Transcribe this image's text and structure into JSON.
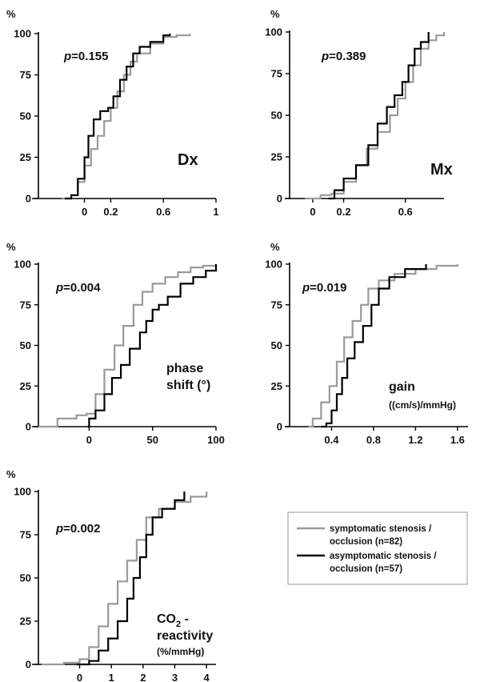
{
  "legend": {
    "symptomatic": {
      "line1": "symptomatic stenosis /",
      "line2": "occlusion (n=82)",
      "color": "#9a9a9a"
    },
    "asymptomatic": {
      "line1": "asymptomatic stenosis /",
      "line2": "occlusion (n=57)",
      "color": "#000000"
    }
  },
  "chart_data": [
    {
      "type": "line",
      "id": "dx",
      "panel_label": [
        "Dx"
      ],
      "p_label": "p",
      "p_value": "=0.155",
      "y_unit": "%",
      "xlim": [
        -0.35,
        1.0
      ],
      "ylim": [
        0,
        100
      ],
      "xticks": [
        0,
        0.2,
        0.6,
        1
      ],
      "xtick_labels": [
        "0",
        "0.2",
        "0.6",
        "1"
      ],
      "yticks": [
        0,
        25,
        50,
        75,
        100
      ],
      "ytick_labels": [
        "0",
        "25",
        "50",
        "75",
        "100"
      ],
      "series": [
        {
          "key": "symptomatic",
          "x": [
            -0.17,
            -0.1,
            -0.05,
            0.0,
            0.05,
            0.1,
            0.15,
            0.2,
            0.25,
            0.3,
            0.35,
            0.4,
            0.5,
            0.6,
            0.7,
            0.8
          ],
          "y": [
            0,
            2,
            10,
            20,
            30,
            38,
            47,
            55,
            65,
            75,
            83,
            88,
            94,
            98,
            99,
            100
          ]
        },
        {
          "key": "asymptomatic",
          "x": [
            -0.15,
            -0.1,
            -0.05,
            0.0,
            0.03,
            0.07,
            0.12,
            0.18,
            0.22,
            0.27,
            0.32,
            0.37,
            0.42,
            0.5,
            0.6,
            0.65
          ],
          "y": [
            0,
            2,
            12,
            25,
            38,
            48,
            53,
            55,
            62,
            72,
            80,
            88,
            92,
            95,
            99,
            100
          ]
        }
      ]
    },
    {
      "type": "line",
      "id": "mx",
      "panel_label": [
        "Mx"
      ],
      "p_label": "p",
      "p_value": "=0.389",
      "y_unit": "%",
      "xlim": [
        -0.15,
        0.85
      ],
      "ylim": [
        0,
        100
      ],
      "xticks": [
        0,
        0.2,
        0.6
      ],
      "xtick_labels": [
        "0",
        "0.2",
        "0.6"
      ],
      "yticks": [
        0,
        25,
        50,
        75,
        100
      ],
      "ytick_labels": [
        "0",
        "25",
        "50",
        "75",
        "100"
      ],
      "series": [
        {
          "key": "symptomatic",
          "x": [
            -0.05,
            0.05,
            0.12,
            0.2,
            0.28,
            0.35,
            0.42,
            0.5,
            0.55,
            0.6,
            0.65,
            0.7,
            0.75,
            0.8,
            0.85
          ],
          "y": [
            0,
            2,
            3,
            10,
            20,
            30,
            40,
            50,
            60,
            70,
            80,
            90,
            95,
            98,
            100
          ]
        },
        {
          "key": "asymptomatic",
          "x": [
            0.1,
            0.14,
            0.2,
            0.28,
            0.36,
            0.42,
            0.48,
            0.53,
            0.58,
            0.62,
            0.66,
            0.7,
            0.75
          ],
          "y": [
            0,
            5,
            12,
            20,
            32,
            45,
            55,
            62,
            70,
            80,
            90,
            94,
            100
          ]
        }
      ]
    },
    {
      "type": "line",
      "id": "phase",
      "panel_label": [
        "phase",
        "shift (°)"
      ],
      "p_label": "p",
      "p_value": "=0.004",
      "y_unit": "%",
      "xlim": [
        -40,
        100
      ],
      "ylim": [
        0,
        100
      ],
      "xticks": [
        0,
        50,
        100
      ],
      "xtick_labels": [
        "0",
        "50",
        "100"
      ],
      "yticks": [
        0,
        25,
        50,
        75,
        100
      ],
      "ytick_labels": [
        "0",
        "25",
        "50",
        "75",
        "100"
      ],
      "series": [
        {
          "key": "symptomatic",
          "x": [
            -40,
            -25,
            -10,
            -2,
            5,
            12,
            20,
            27,
            35,
            42,
            50,
            60,
            70,
            80,
            90,
            100
          ],
          "y": [
            0,
            5,
            7,
            8,
            20,
            35,
            50,
            62,
            75,
            83,
            88,
            92,
            95,
            98,
            99,
            100
          ]
        },
        {
          "key": "asymptomatic",
          "x": [
            -1,
            0,
            5,
            12,
            18,
            25,
            32,
            40,
            45,
            50,
            55,
            62,
            72,
            82,
            92,
            100
          ],
          "y": [
            0,
            5,
            10,
            20,
            30,
            38,
            48,
            58,
            65,
            72,
            75,
            80,
            88,
            92,
            96,
            100
          ]
        }
      ]
    },
    {
      "type": "line",
      "id": "gain",
      "panel_label": [
        "gain",
        "((cm/s)/mmHg)"
      ],
      "p_label": "p",
      "p_value": "=0.019",
      "y_unit": "%",
      "xlim": [
        0.0,
        1.7
      ],
      "ylim": [
        0,
        100
      ],
      "xticks": [
        0.4,
        0.8,
        1.2,
        1.6
      ],
      "xtick_labels": [
        "0.4",
        "0.8",
        "1.2",
        "1.6"
      ],
      "yticks": [
        0,
        25,
        50,
        75,
        100
      ],
      "ytick_labels": [
        "0",
        "25",
        "50",
        "75",
        "100"
      ],
      "series": [
        {
          "key": "symptomatic",
          "x": [
            0.18,
            0.22,
            0.3,
            0.38,
            0.45,
            0.52,
            0.6,
            0.68,
            0.75,
            0.85,
            1.0,
            1.2,
            1.4,
            1.6
          ],
          "y": [
            0,
            5,
            15,
            25,
            40,
            55,
            65,
            75,
            85,
            90,
            94,
            97,
            99,
            100
          ]
        },
        {
          "key": "asymptomatic",
          "x": [
            0.3,
            0.35,
            0.4,
            0.45,
            0.5,
            0.55,
            0.62,
            0.7,
            0.78,
            0.85,
            0.95,
            1.1,
            1.3
          ],
          "y": [
            0,
            2,
            10,
            20,
            30,
            42,
            52,
            62,
            75,
            85,
            92,
            97,
            100
          ]
        }
      ]
    },
    {
      "type": "line",
      "id": "co2",
      "panel_label": [
        "CO",
        "2",
        " -",
        "reactivity",
        "(%/mmHg)"
      ],
      "p_label": "p",
      "p_value": "=0.002",
      "y_unit": "%",
      "xlim": [
        -1.3,
        4.3
      ],
      "ylim": [
        0,
        100
      ],
      "xticks": [
        0,
        1,
        2,
        3,
        4
      ],
      "xtick_labels": [
        "0",
        "1",
        "2",
        "3",
        "4"
      ],
      "yticks": [
        0,
        25,
        50,
        75,
        100
      ],
      "ytick_labels": [
        "0",
        "25",
        "50",
        "75",
        "100"
      ],
      "series": [
        {
          "key": "symptomatic",
          "x": [
            -1.2,
            -0.5,
            0,
            0.3,
            0.6,
            0.9,
            1.2,
            1.5,
            1.8,
            2.1,
            2.5,
            3.0,
            3.5,
            4.0
          ],
          "y": [
            0,
            1,
            3,
            10,
            22,
            35,
            48,
            60,
            72,
            85,
            90,
            94,
            97,
            100
          ]
        },
        {
          "key": "asymptomatic",
          "x": [
            -0.1,
            0.3,
            0.6,
            0.9,
            1.2,
            1.5,
            1.7,
            1.9,
            2.1,
            2.3,
            2.6,
            3.0,
            3.3
          ],
          "y": [
            0,
            2,
            8,
            15,
            25,
            38,
            50,
            62,
            75,
            85,
            90,
            95,
            100
          ]
        }
      ]
    }
  ]
}
